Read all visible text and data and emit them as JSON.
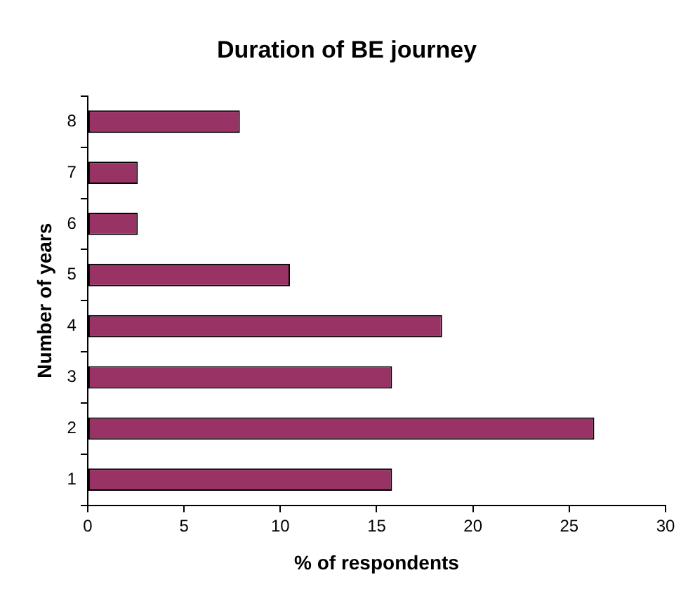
{
  "chart_data": {
    "type": "bar",
    "orientation": "horizontal",
    "title": "Duration of BE journey",
    "xlabel": "% of respondents",
    "ylabel": "Number of years",
    "categories": [
      "8",
      "7",
      "6",
      "5",
      "4",
      "3",
      "2",
      "1"
    ],
    "values": [
      7.9,
      2.6,
      2.6,
      10.5,
      18.4,
      15.8,
      26.3,
      15.8
    ],
    "color": "#993366",
    "xlim": [
      0,
      30
    ],
    "xticks": [
      0,
      5,
      10,
      15,
      20,
      25,
      30
    ],
    "grid": false,
    "legend": false
  }
}
